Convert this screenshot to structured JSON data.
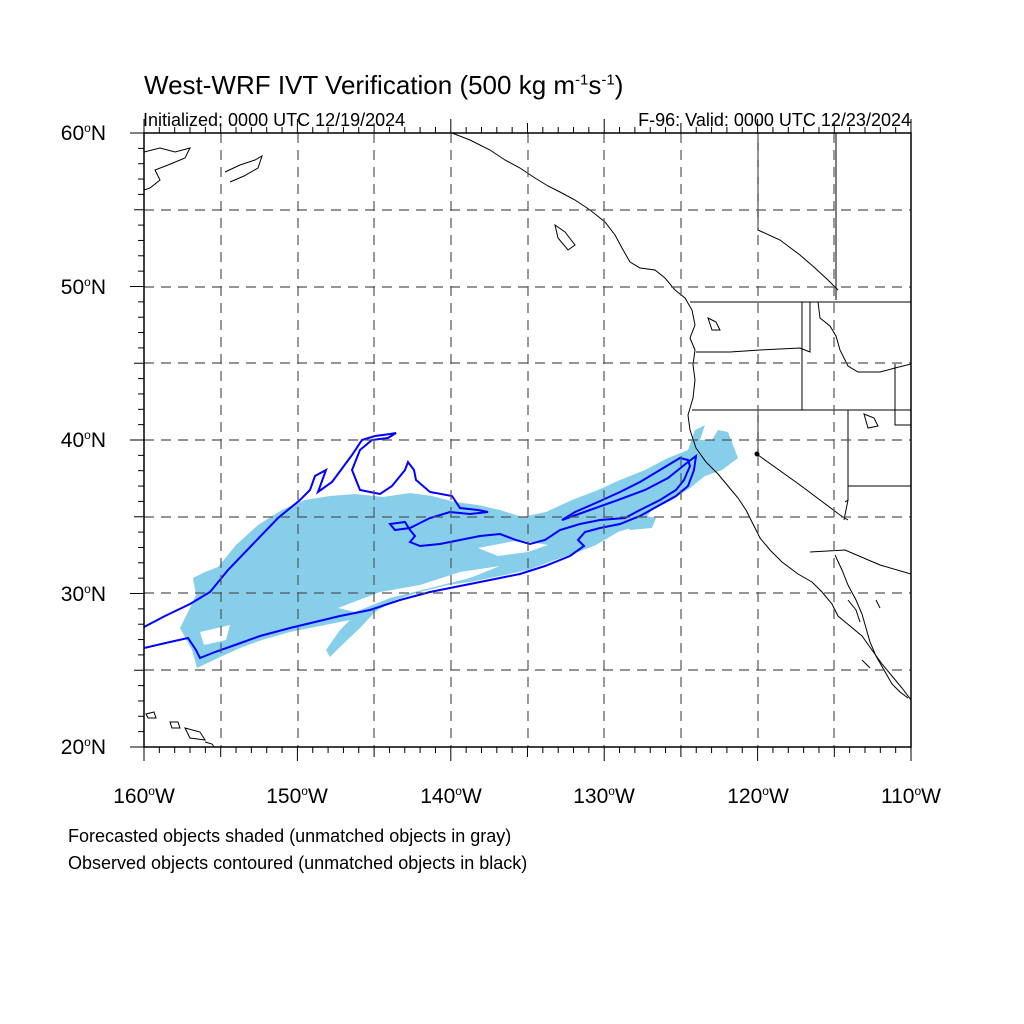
{
  "title": {
    "prefix": "West-WRF IVT Verification (500 kg m",
    "exp1": "-1",
    "mid": "s",
    "exp2": "-1",
    "suffix": ")"
  },
  "initialized": "Initialized: 0000 UTC 12/19/2024",
  "valid": "F-96: Valid: 0000 UTC 12/23/2024",
  "lat_labels": [
    {
      "num": "60",
      "deg": "o",
      "hem": "N"
    },
    {
      "num": "50",
      "deg": "o",
      "hem": "N"
    },
    {
      "num": "40",
      "deg": "o",
      "hem": "N"
    },
    {
      "num": "30",
      "deg": "o",
      "hem": "N"
    },
    {
      "num": "20",
      "deg": "o",
      "hem": "N"
    }
  ],
  "lon_labels": [
    {
      "num": "160",
      "deg": "o",
      "hem": "W"
    },
    {
      "num": "150",
      "deg": "o",
      "hem": "W"
    },
    {
      "num": "140",
      "deg": "o",
      "hem": "W"
    },
    {
      "num": "130",
      "deg": "o",
      "hem": "W"
    },
    {
      "num": "120",
      "deg": "o",
      "hem": "W"
    },
    {
      "num": "110",
      "deg": "o",
      "hem": "W"
    }
  ],
  "notes": {
    "line1": "Forecasted objects shaded (unmatched objects in gray)",
    "line2": "Observed objects contoured (unmatched objects in black)"
  },
  "colors": {
    "forecast_fill": "#87ceeb",
    "observed_contour": "#0000ff",
    "coastline": "#000000",
    "grid": "#555555"
  },
  "map_extent": {
    "lon_min": -160,
    "lon_max": -110,
    "lat_min": 20,
    "lat_max": 60
  }
}
